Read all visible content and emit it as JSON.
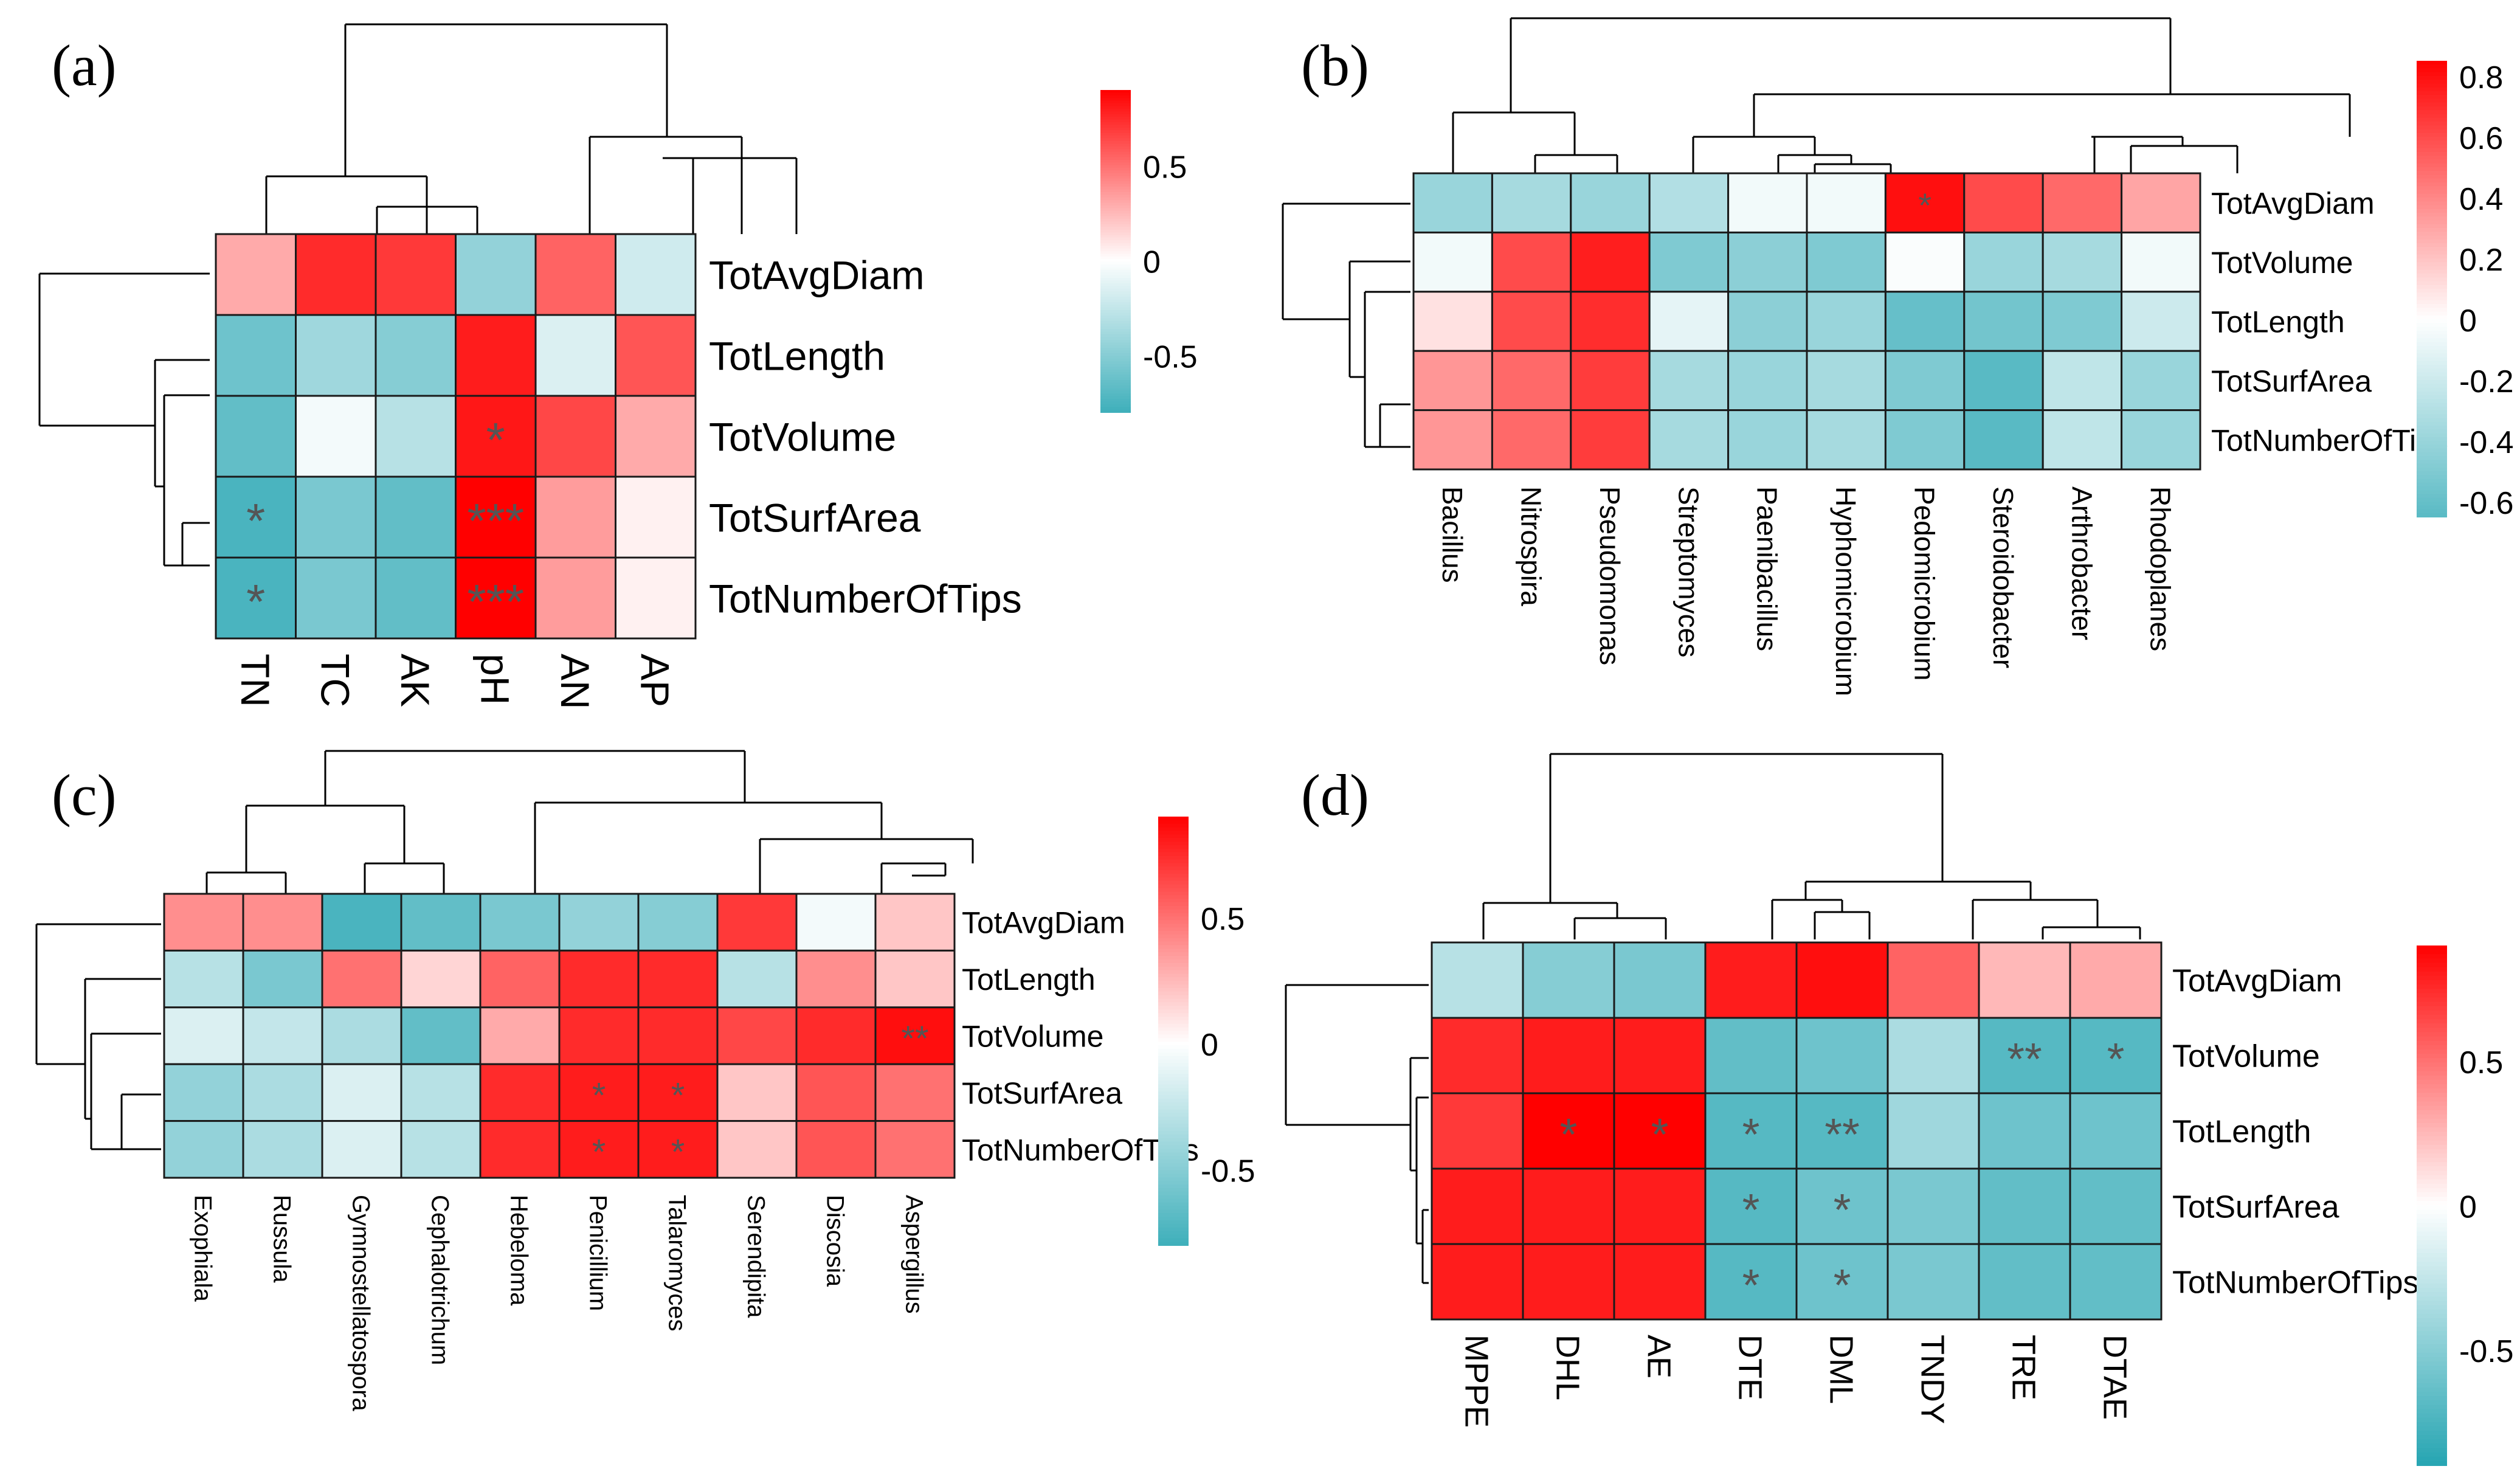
{
  "colors": {
    "low": "#26a5b2",
    "mid": "#ffffff",
    "high": "#ff0000",
    "star": "#555555",
    "grid": "#1a1a1a"
  },
  "chart_data": [
    {
      "type": "heatmap",
      "panel_label": "(a)",
      "rows": [
        "TotAvgDiam",
        "TotLength",
        "TotVolume",
        "TotSurfArea",
        "TotNumberOfTips"
      ],
      "columns": [
        "TN",
        "TC",
        "AK",
        "pH",
        "AN",
        "AP"
      ],
      "values": [
        [
          0.3,
          0.75,
          0.7,
          -0.45,
          0.55,
          -0.2
        ],
        [
          -0.6,
          -0.4,
          -0.5,
          0.8,
          -0.15,
          0.6
        ],
        [
          -0.65,
          -0.05,
          -0.3,
          0.82,
          0.65,
          0.3
        ],
        [
          -0.75,
          -0.55,
          -0.65,
          0.95,
          0.35,
          0.05
        ],
        [
          -0.75,
          -0.55,
          -0.65,
          0.95,
          0.35,
          0.05
        ]
      ],
      "significance": [
        [
          "",
          "",
          "",
          "",
          "",
          ""
        ],
        [
          "",
          "",
          "",
          "",
          "",
          ""
        ],
        [
          "",
          "",
          "",
          "*",
          "",
          ""
        ],
        [
          "*",
          "",
          "",
          "***",
          "",
          ""
        ],
        [
          "*",
          "",
          "",
          "***",
          "",
          ""
        ]
      ],
      "colorbar": {
        "range": [
          -0.8,
          0.9
        ],
        "ticks": [
          0.5,
          0,
          -0.5
        ],
        "tick_labels": [
          "0.5",
          "0",
          "-0.5"
        ]
      }
    },
    {
      "type": "heatmap",
      "panel_label": "(b)",
      "rows": [
        "TotAvgDiam",
        "TotVolume",
        "TotLength",
        "TotSurfArea",
        "TotNumberOfTips"
      ],
      "columns": [
        "Bacillus",
        "Nitrospira",
        "Pseudomonas",
        "Streptomyces",
        "Paenibacillus",
        "Hyphomicrobium",
        "Pedomicrobium",
        "Steroidobacter",
        "Arthrobacter",
        "Rhodoplanes"
      ],
      "values": [
        [
          -0.4,
          -0.35,
          -0.4,
          -0.3,
          -0.05,
          -0.05,
          0.8,
          0.6,
          0.5,
          0.3
        ],
        [
          -0.05,
          0.6,
          0.75,
          -0.5,
          -0.45,
          -0.5,
          -0.02,
          -0.4,
          -0.35,
          -0.05
        ],
        [
          0.1,
          0.6,
          0.7,
          -0.1,
          -0.45,
          -0.4,
          -0.6,
          -0.55,
          -0.5,
          -0.2
        ],
        [
          0.35,
          0.5,
          0.65,
          -0.35,
          -0.4,
          -0.35,
          -0.5,
          -0.65,
          -0.25,
          -0.4
        ],
        [
          0.35,
          0.5,
          0.65,
          -0.35,
          -0.4,
          -0.35,
          -0.5,
          -0.65,
          -0.25,
          -0.4
        ]
      ],
      "significance": [
        [
          "",
          "",
          "",
          "",
          "",
          "",
          "*",
          "",
          "",
          ""
        ],
        [
          "",
          "",
          "",
          "",
          "",
          "",
          "",
          "",
          "",
          ""
        ],
        [
          "",
          "",
          "",
          "",
          "",
          "",
          "",
          "",
          "",
          ""
        ],
        [
          "",
          "",
          "",
          "",
          "",
          "",
          "",
          "",
          "",
          ""
        ],
        [
          "",
          "",
          "",
          "",
          "",
          "",
          "",
          "",
          "",
          ""
        ]
      ],
      "colorbar": {
        "range": [
          -0.65,
          0.85
        ],
        "ticks": [
          0.8,
          0.6,
          0.4,
          0.2,
          0,
          -0.2,
          -0.4,
          -0.6
        ],
        "tick_labels": [
          "0.8",
          "0.6",
          "0.4",
          "0.2",
          "0",
          "-0.2",
          "-0.4",
          "-0.6"
        ]
      }
    },
    {
      "type": "heatmap",
      "panel_label": "(c)",
      "rows": [
        "TotAvgDiam",
        "TotLength",
        "TotVolume",
        "TotSurfArea",
        "TotNumberOfTips"
      ],
      "columns": [
        "Exophiala",
        "Russula",
        "Gymnostellatospora",
        "Cephalotrichum",
        "Hebeloma",
        "Penicillium",
        "Talaromyces",
        "Serendipita",
        "Discosia",
        "Aspergillus"
      ],
      "values": [
        [
          0.4,
          0.4,
          -0.75,
          -0.65,
          -0.55,
          -0.45,
          -0.5,
          0.7,
          -0.05,
          0.2
        ],
        [
          -0.3,
          -0.55,
          0.5,
          0.15,
          0.55,
          0.75,
          0.75,
          -0.3,
          0.4,
          0.2
        ],
        [
          -0.15,
          -0.25,
          -0.35,
          -0.65,
          0.3,
          0.75,
          0.75,
          0.65,
          0.75,
          0.85
        ],
        [
          -0.45,
          -0.35,
          -0.15,
          -0.3,
          0.75,
          0.8,
          0.8,
          0.2,
          0.6,
          0.5
        ],
        [
          -0.45,
          -0.35,
          -0.15,
          -0.3,
          0.75,
          0.8,
          0.8,
          0.2,
          0.6,
          0.5
        ]
      ],
      "significance": [
        [
          "",
          "",
          "",
          "",
          "",
          "",
          "",
          "",
          "",
          ""
        ],
        [
          "",
          "",
          "",
          "",
          "",
          "",
          "",
          "",
          "",
          ""
        ],
        [
          "",
          "",
          "",
          "",
          "",
          "",
          "",
          "",
          "",
          "**"
        ],
        [
          "",
          "",
          "",
          "",
          "",
          "*",
          "*",
          "",
          "",
          ""
        ],
        [
          "",
          "",
          "",
          "",
          "",
          "*",
          "*",
          "",
          "",
          ""
        ]
      ],
      "colorbar": {
        "range": [
          -0.8,
          0.9
        ],
        "ticks": [
          0.5,
          0,
          -0.5
        ],
        "tick_labels": [
          "0.5",
          "0",
          "-0.5"
        ]
      }
    },
    {
      "type": "heatmap",
      "panel_label": "(d)",
      "rows": [
        "TotAvgDiam",
        "TotVolume",
        "TotLength",
        "TotSurfArea",
        "TotNumberOfTips"
      ],
      "columns": [
        "MPPE",
        "DHL",
        "AE",
        "DTE",
        "DML",
        "TNDY",
        "TRE",
        "DTAE"
      ],
      "values": [
        [
          -0.3,
          -0.5,
          -0.55,
          0.8,
          0.85,
          0.55,
          0.25,
          0.3
        ],
        [
          0.75,
          0.8,
          0.8,
          -0.65,
          -0.6,
          -0.35,
          -0.7,
          -0.7
        ],
        [
          0.7,
          0.9,
          0.9,
          -0.7,
          -0.7,
          -0.4,
          -0.6,
          -0.6
        ],
        [
          0.8,
          0.8,
          0.8,
          -0.7,
          -0.6,
          -0.55,
          -0.65,
          -0.65
        ],
        [
          0.8,
          0.8,
          0.8,
          -0.7,
          -0.6,
          -0.55,
          -0.65,
          -0.65
        ]
      ],
      "significance": [
        [
          "",
          "",
          "",
          "",
          "",
          "",
          "",
          ""
        ],
        [
          "",
          "",
          "",
          "",
          "",
          "",
          "**",
          "*"
        ],
        [
          "",
          "*",
          "*",
          "*",
          "**",
          "",
          "",
          ""
        ],
        [
          "",
          "",
          "",
          "*",
          "*",
          "",
          "",
          ""
        ],
        [
          "",
          "",
          "",
          "*",
          "*",
          "",
          "",
          ""
        ]
      ],
      "colorbar": {
        "range": [
          -0.9,
          0.9
        ],
        "ticks": [
          0.5,
          0,
          -0.5
        ],
        "tick_labels": [
          "0.5",
          "0",
          "-0.5"
        ]
      }
    }
  ]
}
